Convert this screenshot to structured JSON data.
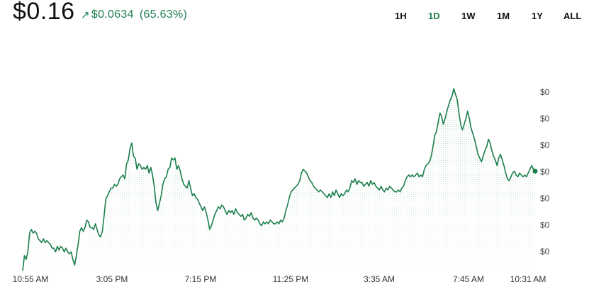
{
  "header": {
    "price": "$0.16",
    "change_arrow": "↗",
    "change_value": "$0.0634",
    "change_percent": "(65.63%)"
  },
  "ranges": {
    "selected": "1D",
    "items": [
      {
        "label": "1H"
      },
      {
        "label": "1D"
      },
      {
        "label": "1W"
      },
      {
        "label": "1M"
      },
      {
        "label": "1Y"
      },
      {
        "label": "ALL"
      }
    ]
  },
  "colors": {
    "accent": "#1b7f4c",
    "line": "#1b7f4c"
  },
  "chart_data": {
    "type": "area",
    "x_tick_labels": [
      "10:55 AM",
      "3:05 PM",
      "7:15 PM",
      "11:25 PM",
      "3:35 AM",
      "7:45 AM",
      "10:31 AM"
    ],
    "y_tick_labels": [
      "$0",
      "$0",
      "$0",
      "$0",
      "$0",
      "$0",
      "$0"
    ],
    "grid": false,
    "series": [
      {
        "values": [
          0.104,
          0.112,
          0.11,
          0.114,
          0.124,
          0.126,
          0.124,
          0.125,
          0.124,
          0.121,
          0.12,
          0.119,
          0.121,
          0.119,
          0.12,
          0.119,
          0.118,
          0.116,
          0.116,
          0.114,
          0.117,
          0.115,
          0.117,
          0.116,
          0.114,
          0.116,
          0.114,
          0.113,
          0.114,
          0.11,
          0.107,
          0.112,
          0.118,
          0.125,
          0.127,
          0.125,
          0.127,
          0.131,
          0.13,
          0.127,
          0.127,
          0.126,
          0.129,
          0.126,
          0.123,
          0.122,
          0.125,
          0.133,
          0.142,
          0.144,
          0.146,
          0.148,
          0.148,
          0.15,
          0.149,
          0.15,
          0.153,
          0.154,
          0.155,
          0.153,
          0.161,
          0.163,
          0.169,
          0.172,
          0.165,
          0.164,
          0.158,
          0.161,
          0.16,
          0.158,
          0.159,
          0.158,
          0.16,
          0.156,
          0.159,
          0.155,
          0.149,
          0.14,
          0.136,
          0.14,
          0.144,
          0.15,
          0.153,
          0.154,
          0.158,
          0.159,
          0.164,
          0.163,
          0.164,
          0.158,
          0.16,
          0.157,
          0.153,
          0.15,
          0.149,
          0.148,
          0.152,
          0.148,
          0.144,
          0.145,
          0.143,
          0.142,
          0.14,
          0.138,
          0.136,
          0.138,
          0.135,
          0.131,
          0.126,
          0.128,
          0.131,
          0.134,
          0.136,
          0.138,
          0.137,
          0.139,
          0.138,
          0.136,
          0.134,
          0.136,
          0.135,
          0.136,
          0.134,
          0.137,
          0.135,
          0.134,
          0.133,
          0.134,
          0.131,
          0.132,
          0.134,
          0.133,
          0.135,
          0.132,
          0.131,
          0.132,
          0.131,
          0.129,
          0.128,
          0.13,
          0.129,
          0.13,
          0.129,
          0.131,
          0.13,
          0.129,
          0.129,
          0.13,
          0.129,
          0.131,
          0.13,
          0.132,
          0.136,
          0.139,
          0.143,
          0.146,
          0.147,
          0.148,
          0.149,
          0.15,
          0.152,
          0.156,
          0.158,
          0.157,
          0.156,
          0.154,
          0.152,
          0.151,
          0.149,
          0.148,
          0.147,
          0.146,
          0.147,
          0.146,
          0.145,
          0.144,
          0.143,
          0.145,
          0.143,
          0.146,
          0.144,
          0.147,
          0.145,
          0.143,
          0.145,
          0.144,
          0.145,
          0.147,
          0.146,
          0.148,
          0.152,
          0.151,
          0.153,
          0.15,
          0.152,
          0.151,
          0.151,
          0.149,
          0.15,
          0.151,
          0.149,
          0.152,
          0.15,
          0.151,
          0.149,
          0.148,
          0.147,
          0.149,
          0.147,
          0.146,
          0.148,
          0.147,
          0.149,
          0.148,
          0.147,
          0.146,
          0.146,
          0.147,
          0.146,
          0.148,
          0.149,
          0.152,
          0.154,
          0.155,
          0.154,
          0.155,
          0.154,
          0.155,
          0.156,
          0.154,
          0.155,
          0.154,
          0.158,
          0.16,
          0.161,
          0.162,
          0.165,
          0.17,
          0.176,
          0.178,
          0.183,
          0.188,
          0.186,
          0.182,
          0.185,
          0.189,
          0.192,
          0.195,
          0.197,
          0.201,
          0.198,
          0.195,
          0.188,
          0.182,
          0.179,
          0.182,
          0.185,
          0.189,
          0.185,
          0.18,
          0.177,
          0.174,
          0.17,
          0.166,
          0.164,
          0.162,
          0.165,
          0.168,
          0.17,
          0.174,
          0.172,
          0.168,
          0.165,
          0.163,
          0.16,
          0.164,
          0.166,
          0.163,
          0.16,
          0.156,
          0.153,
          0.152,
          0.154,
          0.156,
          0.157,
          0.155,
          0.154,
          0.156,
          0.155,
          0.154,
          0.155,
          0.154,
          0.156,
          0.158,
          0.16,
          0.158,
          0.157
        ]
      }
    ]
  }
}
